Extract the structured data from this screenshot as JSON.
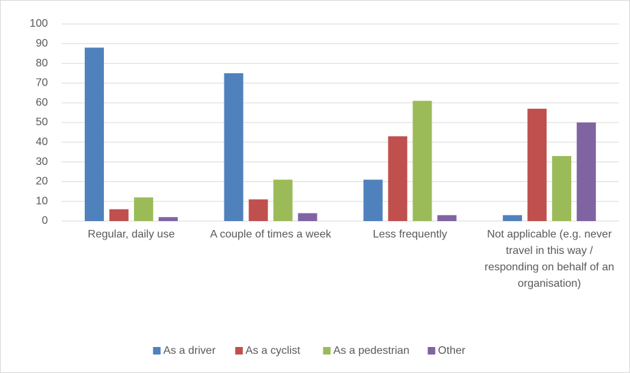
{
  "chart_data": {
    "type": "bar",
    "categories": [
      "Regular, daily use",
      "A couple of times a week",
      "Less frequently",
      "Not applicable (e.g. never travel in this way / responding on behalf of an organisation)"
    ],
    "series": [
      {
        "name": "As a driver",
        "color": "#4f81bd",
        "values": [
          88,
          75,
          21,
          3
        ]
      },
      {
        "name": "As a cyclist",
        "color": "#c0504d",
        "values": [
          6,
          11,
          43,
          57
        ]
      },
      {
        "name": "As a pedestrian",
        "color": "#9bbb59",
        "values": [
          12,
          21,
          61,
          33
        ]
      },
      {
        "name": "Other",
        "color": "#8064a2",
        "values": [
          2,
          4,
          3,
          50
        ]
      }
    ],
    "ylim": [
      0,
      100
    ],
    "yticks": [
      0,
      10,
      20,
      30,
      40,
      50,
      60,
      70,
      80,
      90,
      100
    ],
    "grid": true,
    "legend": "bottom"
  }
}
